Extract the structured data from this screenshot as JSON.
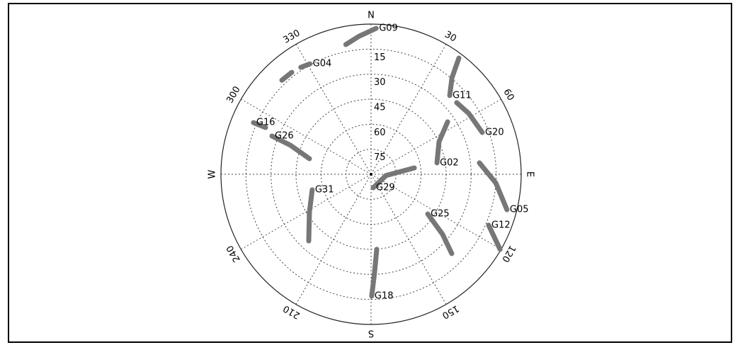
{
  "chart_data": {
    "type": "skyplot",
    "rlim": [
      90,
      0
    ],
    "rticks": [
      15,
      30,
      45,
      60,
      75
    ],
    "azticks": [
      {
        "value": 0,
        "label": "N"
      },
      30,
      60,
      {
        "value": 90,
        "label": "E"
      },
      120,
      150,
      {
        "value": 180,
        "label": "S"
      },
      210,
      240,
      {
        "value": 270,
        "label": "W"
      },
      300,
      330
    ],
    "color": "#777777",
    "series": [
      {
        "name": "G09",
        "az": [
          2,
          355,
          349,
          null,
          339
        ],
        "el": [
          2.5,
          7,
          10.8,
          null,
          7.6
        ]
      },
      {
        "name": "G04",
        "az": [
          331,
          326.7,
          null,
          322.1,
          316.5,
          null,
          312.8,
          null,
          308.4
        ],
        "el": [
          14.4,
          13.3,
          null,
          12.6,
          12.3,
          null,
          11.3,
          null,
          9.3
        ]
      },
      {
        "name": "G11",
        "az": [
          45,
          40,
          37.1
        ],
        "el": [
          23.3,
          14.6,
          2.7
        ]
      },
      {
        "name": "G20",
        "az": [
          69.4,
          58,
          50.1
        ],
        "el": [
          18.8,
          21,
          23.1
        ]
      },
      {
        "name": "G02",
        "az": [
          80.2,
          64.4,
          55.6
        ],
        "el": [
          49.9,
          44.8,
          34.4
        ]
      },
      {
        "name": "G05",
        "az": [
          104.6,
          94,
          84
        ],
        "el": [
          5.8,
          15,
          24.7
        ]
      },
      {
        "name": "G12",
        "az": [
          113.4,
          120.2
        ],
        "el": [
          13.2,
          0.5
        ]
      },
      {
        "name": "G25",
        "az": [
          125,
          130,
          134.5
        ],
        "el": [
          48.5,
          34,
          22.2
        ]
      },
      {
        "name": "G18",
        "az": [
          179.7,
          178,
          175.7
        ],
        "el": [
          17,
          31,
          44.9
        ]
      },
      {
        "name": "G29",
        "az": [
          171,
          95,
          81.6
        ],
        "el": [
          81.8,
          81,
          63.8
        ]
      },
      {
        "name": "G31",
        "az": [
          255.2,
          238.2,
          223.1
        ],
        "el": [
          53.5,
          46.5,
          35.3
        ]
      },
      {
        "name": "G16",
        "az": [
          293.7,
          293.9
        ],
        "el": [
          13,
          20.8
        ]
      },
      {
        "name": "G26",
        "az": [
          291.1,
          289.8,
          284.2
        ],
        "el": [
          26.3,
          38.6,
          51.9
        ]
      }
    ]
  }
}
